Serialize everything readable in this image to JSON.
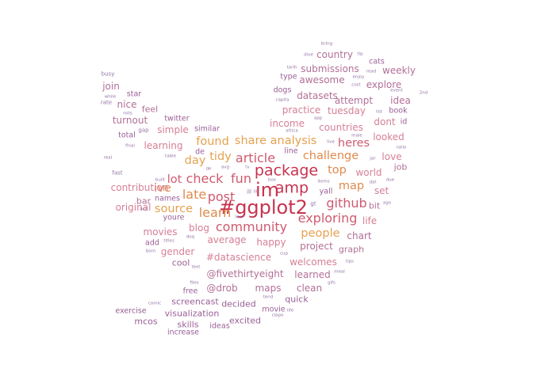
{
  "palette": {
    "deep": "#c7334f",
    "rose": "#cf5a6e",
    "orange": "#e08a4c",
    "gold": "#e6a14f",
    "mauve": "#b26f97",
    "plum": "#9a5f96",
    "pink": "#d67f96",
    "violet": "#7f5a96"
  },
  "wordcloud": {
    "words": [
      {
        "text": "im",
        "tier": 1,
        "color": "#c7334f"
      },
      {
        "text": "#ggplot2",
        "tier": 1,
        "color": "#c7334f"
      },
      {
        "text": "package",
        "tier": 2,
        "color": "#c7334f"
      },
      {
        "text": "amp",
        "tier": 2,
        "color": "#c7334f"
      },
      {
        "text": "article",
        "tier": 3,
        "color": "#cf5a6e"
      },
      {
        "text": "fun",
        "tier": 3,
        "color": "#cf5a6e"
      },
      {
        "text": "check",
        "tier": 3,
        "color": "#cf5a6e"
      },
      {
        "text": "post",
        "tier": 3,
        "color": "#cf5a6e"
      },
      {
        "text": "community",
        "tier": 3,
        "color": "#cf5a6e"
      },
      {
        "text": "exploring",
        "tier": 3,
        "color": "#cf5a6e"
      },
      {
        "text": "github",
        "tier": 3,
        "color": "#cf5a6e"
      },
      {
        "text": "learn",
        "tier": 3,
        "color": "#e08a4c"
      },
      {
        "text": "late",
        "tier": 3,
        "color": "#e08a4c"
      },
      {
        "text": "top",
        "tier": 4,
        "color": "#e08a4c"
      },
      {
        "text": "map",
        "tier": 4,
        "color": "#e08a4c"
      },
      {
        "text": "tidy",
        "tier": 4,
        "color": "#e6a14f"
      },
      {
        "text": "share",
        "tier": 4,
        "color": "#e6a14f"
      },
      {
        "text": "analysis",
        "tier": 4,
        "color": "#e6a14f"
      },
      {
        "text": "challenge",
        "tier": 4,
        "color": "#e08a4c"
      },
      {
        "text": "heres",
        "tier": 4,
        "color": "#cf5a6e"
      },
      {
        "text": "people",
        "tier": 4,
        "color": "#e6a14f"
      },
      {
        "text": "source",
        "tier": 4,
        "color": "#e6a14f"
      },
      {
        "text": "lot",
        "tier": 4,
        "color": "#cf5a6e"
      },
      {
        "text": "day",
        "tier": 4,
        "color": "#e6a14f"
      },
      {
        "text": "found",
        "tier": 4,
        "color": "#e6a14f"
      },
      {
        "text": "ive",
        "tier": 4,
        "color": "#e08a4c"
      },
      {
        "text": "blog",
        "tier": 5,
        "color": "#d67f96"
      },
      {
        "text": "movies",
        "tier": 5,
        "color": "#d67f96"
      },
      {
        "text": "contribution",
        "tier": 5,
        "color": "#d67f96"
      },
      {
        "text": "original",
        "tier": 5,
        "color": "#d67f96"
      },
      {
        "text": "learning",
        "tier": 5,
        "color": "#d67f96"
      },
      {
        "text": "simple",
        "tier": 5,
        "color": "#d67f96"
      },
      {
        "text": "turnout",
        "tier": 5,
        "color": "#b26f97"
      },
      {
        "text": "income",
        "tier": 5,
        "color": "#d67f96"
      },
      {
        "text": "practice",
        "tier": 5,
        "color": "#d67f96"
      },
      {
        "text": "countries",
        "tier": 5,
        "color": "#d67f96"
      },
      {
        "text": "tuesday",
        "tier": 5,
        "color": "#d67f96"
      },
      {
        "text": "dont",
        "tier": 5,
        "color": "#d67f96"
      },
      {
        "text": "looked",
        "tier": 5,
        "color": "#d67f96"
      },
      {
        "text": "love",
        "tier": 5,
        "color": "#d67f96"
      },
      {
        "text": "world",
        "tier": 5,
        "color": "#d67f96"
      },
      {
        "text": "set",
        "tier": 5,
        "color": "#d67f96"
      },
      {
        "text": "life",
        "tier": 5,
        "color": "#d67f96"
      },
      {
        "text": "chart",
        "tier": 5,
        "color": "#b26f97"
      },
      {
        "text": "average",
        "tier": 5,
        "color": "#d67f96"
      },
      {
        "text": "happy",
        "tier": 5,
        "color": "#d67f96"
      },
      {
        "text": "#datascience",
        "tier": 5,
        "color": "#d67f96"
      },
      {
        "text": "welcomes",
        "tier": 5,
        "color": "#d67f96"
      },
      {
        "text": "@fivethirtyeight",
        "tier": 5,
        "color": "#b26f97"
      },
      {
        "text": "gender",
        "tier": 5,
        "color": "#d67f96"
      },
      {
        "text": "project",
        "tier": 5,
        "color": "#b26f97"
      },
      {
        "text": "learned",
        "tier": 5,
        "color": "#b26f97"
      },
      {
        "text": "@drob",
        "tier": 5,
        "color": "#b26f97"
      },
      {
        "text": "maps",
        "tier": 5,
        "color": "#b26f97"
      },
      {
        "text": "clean",
        "tier": 5,
        "color": "#b26f97"
      },
      {
        "text": "datasets",
        "tier": 5,
        "color": "#b26f97"
      },
      {
        "text": "awesome",
        "tier": 5,
        "color": "#b26f97"
      },
      {
        "text": "submissions",
        "tier": 5,
        "color": "#b26f97"
      },
      {
        "text": "explore",
        "tier": 5,
        "color": "#b26f97"
      },
      {
        "text": "attempt",
        "tier": 5,
        "color": "#b26f97"
      },
      {
        "text": "idea",
        "tier": 5,
        "color": "#b26f97"
      },
      {
        "text": "weekly",
        "tier": 5,
        "color": "#b26f97"
      },
      {
        "text": "country",
        "tier": 5,
        "color": "#b26f97"
      },
      {
        "text": "nice",
        "tier": 5,
        "color": "#b26f97"
      },
      {
        "text": "join",
        "tier": 5,
        "color": "#b26f97"
      },
      {
        "text": "bit",
        "tier": 6,
        "color": "#b26f97"
      },
      {
        "text": "job",
        "tier": 6,
        "color": "#b26f97"
      },
      {
        "text": "graph",
        "tier": 6,
        "color": "#b26f97"
      },
      {
        "text": "yall",
        "tier": 7,
        "color": "#9a5f96"
      },
      {
        "text": "screencast",
        "tier": 6,
        "color": "#9a5f96"
      },
      {
        "text": "visualization",
        "tier": 6,
        "color": "#9a5f96"
      },
      {
        "text": "decided",
        "tier": 6,
        "color": "#9a5f96"
      },
      {
        "text": "quick",
        "tier": 6,
        "color": "#9a5f96"
      },
      {
        "text": "excited",
        "tier": 6,
        "color": "#9a5f96"
      },
      {
        "text": "movie",
        "tier": 7,
        "color": "#9a5f96"
      },
      {
        "text": "mcos",
        "tier": 6,
        "color": "#9a5f96"
      },
      {
        "text": "skills",
        "tier": 6,
        "color": "#9a5f96"
      },
      {
        "text": "ideas",
        "tier": 7,
        "color": "#9a5f96"
      },
      {
        "text": "exercise",
        "tier": 7,
        "color": "#9a5f96"
      },
      {
        "text": "increase",
        "tier": 7,
        "color": "#9a5f96"
      },
      {
        "text": "cool",
        "tier": 6,
        "color": "#9a5f96"
      },
      {
        "text": "free",
        "tier": 7,
        "color": "#9a5f96"
      },
      {
        "text": "bar",
        "tier": 6,
        "color": "#b26f97"
      },
      {
        "text": "youre",
        "tier": 7,
        "color": "#9a5f96"
      },
      {
        "text": "add",
        "tier": 7,
        "color": "#9a5f96"
      },
      {
        "text": "feel",
        "tier": 6,
        "color": "#b26f97"
      },
      {
        "text": "twitter",
        "tier": 7,
        "color": "#9a5f96"
      },
      {
        "text": "total",
        "tier": 7,
        "color": "#9a5f96"
      },
      {
        "text": "similar",
        "tier": 7,
        "color": "#9a5f96"
      },
      {
        "text": "dogs",
        "tier": 7,
        "color": "#9a5f96"
      },
      {
        "text": "type",
        "tier": 7,
        "color": "#9a5f96"
      },
      {
        "text": "cats",
        "tier": 7,
        "color": "#9a5f96"
      },
      {
        "text": "star",
        "tier": 7,
        "color": "#9a5f96"
      },
      {
        "text": "de",
        "tier": 7,
        "color": "#9a5f96"
      },
      {
        "text": "names",
        "tier": 7,
        "color": "#9a5f96"
      },
      {
        "text": "book",
        "tier": 7,
        "color": "#9a5f96"
      },
      {
        "text": "id",
        "tier": 7,
        "color": "#9a5f96"
      },
      {
        "text": "line",
        "tier": 7,
        "color": "#9a5f96"
      },
      {
        "text": "busy",
        "tier": 8,
        "color": "#7f5a96"
      },
      {
        "text": "rate",
        "tier": 8,
        "color": "#7f5a96"
      },
      {
        "text": "while",
        "tier": 9,
        "color": "#7f5a96"
      },
      {
        "text": "rolls",
        "tier": 9,
        "color": "#7f5a96"
      },
      {
        "text": "gap",
        "tier": 8,
        "color": "#7f5a96"
      },
      {
        "text": "final",
        "tier": 9,
        "color": "#7f5a96"
      },
      {
        "text": "real",
        "tier": 9,
        "color": "#7f5a96"
      },
      {
        "text": "fast",
        "tier": 8,
        "color": "#7f5a96"
      },
      {
        "text": "built",
        "tier": 9,
        "color": "#7f5a96"
      },
      {
        "text": "table",
        "tier": 9,
        "color": "#7f5a96"
      },
      {
        "text": "acs",
        "tier": 9,
        "color": "#7f5a96"
      },
      {
        "text": "born",
        "tier": 9,
        "color": "#7f5a96"
      },
      {
        "text": "titles",
        "tier": 9,
        "color": "#7f5a96"
      },
      {
        "text": "doq",
        "tier": 9,
        "color": "#7f5a96"
      },
      {
        "text": "text",
        "tier": 9,
        "color": "#7f5a96"
      },
      {
        "text": "comic",
        "tier": 9,
        "color": "#7f5a96"
      },
      {
        "text": "files",
        "tier": 9,
        "color": "#7f5a96"
      },
      {
        "text": "de",
        "tier": 9,
        "color": "#7f5a96"
      },
      {
        "text": "avg",
        "tier": 9,
        "color": "#7f5a96"
      },
      {
        "text": "tv",
        "tier": 9,
        "color": "#7f5a96"
      },
      {
        "text": "ill",
        "tier": 8,
        "color": "#7f5a96"
      },
      {
        "text": "low",
        "tier": 9,
        "color": "#7f5a96"
      },
      {
        "text": "box",
        "tier": 9,
        "color": "#7f5a96"
      },
      {
        "text": "cup",
        "tier": 9,
        "color": "#7f5a96"
      },
      {
        "text": "tend",
        "tier": 9,
        "color": "#7f5a96"
      },
      {
        "text": "clapo",
        "tier": 9,
        "color": "#7f5a96"
      },
      {
        "text": "life",
        "tier": 9,
        "color": "#7f5a96"
      },
      {
        "text": "gt",
        "tier": 8,
        "color": "#7f5a96"
      },
      {
        "text": "items",
        "tier": 9,
        "color": "#7f5a96"
      },
      {
        "text": "dat",
        "tier": 9,
        "color": "#7f5a96"
      },
      {
        "text": "due",
        "tier": 9,
        "color": "#7f5a96"
      },
      {
        "text": "ago",
        "tier": 9,
        "color": "#7f5a96"
      },
      {
        "text": "tips",
        "tier": 9,
        "color": "#7f5a96"
      },
      {
        "text": "meal",
        "tier": 9,
        "color": "#7f5a96"
      },
      {
        "text": "gifs",
        "tier": 9,
        "color": "#7f5a96"
      },
      {
        "text": "ratio",
        "tier": 9,
        "color": "#7f5a96"
      },
      {
        "text": "jar",
        "tier": 9,
        "color": "#7f5a96"
      },
      {
        "text": "male",
        "tier": 9,
        "color": "#7f5a96"
      },
      {
        "text": "live",
        "tier": 9,
        "color": "#7f5a96"
      },
      {
        "text": "africa",
        "tier": 9,
        "color": "#7f5a96"
      },
      {
        "text": "app",
        "tier": 9,
        "color": "#7f5a96"
      },
      {
        "text": "capita",
        "tier": 9,
        "color": "#7f5a96"
      },
      {
        "text": "list",
        "tier": 9,
        "color": "#7f5a96"
      },
      {
        "text": "cost",
        "tier": 9,
        "color": "#7f5a96"
      },
      {
        "text": "enjoy",
        "tier": 9,
        "color": "#7f5a96"
      },
      {
        "text": "event",
        "tier": 9,
        "color": "#7f5a96"
      },
      {
        "text": "2nd",
        "tier": 9,
        "color": "#7f5a96"
      },
      {
        "text": "read",
        "tier": 9,
        "color": "#7f5a96"
      },
      {
        "text": "tip",
        "tier": 9,
        "color": "#7f5a96"
      },
      {
        "text": "dive",
        "tier": 9,
        "color": "#7f5a96"
      },
      {
        "text": "bring",
        "tier": 9,
        "color": "#7f5a96"
      },
      {
        "text": "tarih",
        "tier": 9,
        "color": "#7f5a96"
      },
      {
        "text": "ill",
        "tier": 9,
        "color": "#7f5a96"
      }
    ]
  }
}
